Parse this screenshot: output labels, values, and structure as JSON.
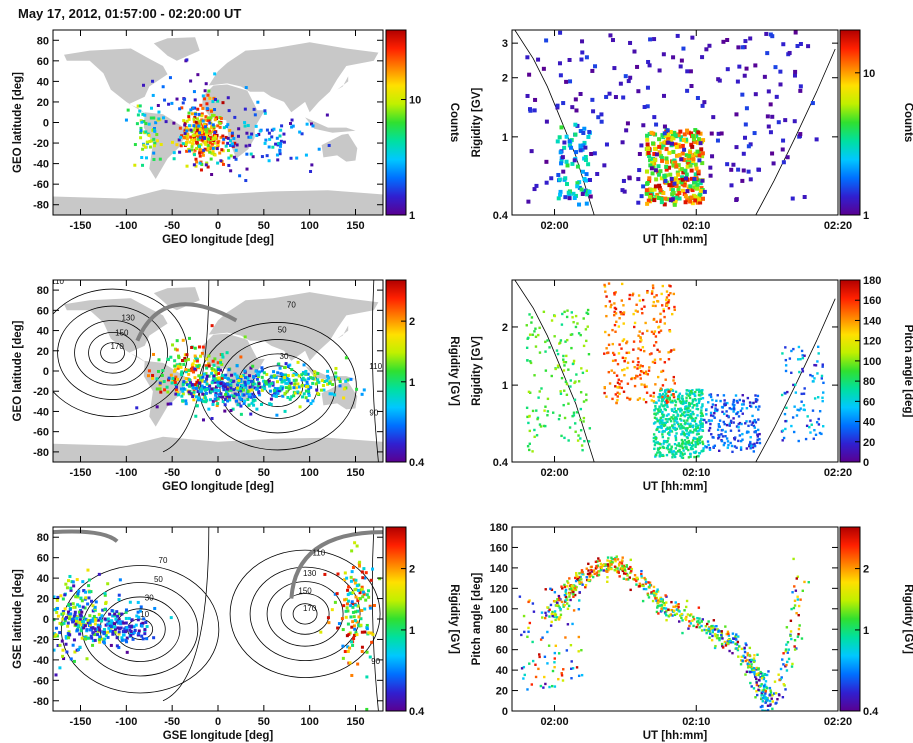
{
  "figure_title": "May 17, 2012, 01:57:00 - 02:20:00 UT",
  "colors": {
    "land": "#c8c8c8",
    "frame": "#000000",
    "orbit_track": "#808080",
    "colormap": [
      "#5a0090",
      "#3020d0",
      "#0070ff",
      "#00c8ff",
      "#00e0a0",
      "#30e030",
      "#c0f000",
      "#ffe000",
      "#ff8000",
      "#ff2000",
      "#b00000"
    ]
  },
  "chart_data": [
    {
      "id": "geo-counts",
      "type": "heatmap",
      "xlabel": "GEO longitude [deg]",
      "ylabel": "GEO latitude [deg]",
      "xlim": [
        -180,
        180
      ],
      "ylim": [
        -90,
        90
      ],
      "xticks": [
        "-150",
        "-100",
        "-50",
        "0",
        "50",
        "100",
        "150"
      ],
      "xtick_values": [
        -150,
        -100,
        -50,
        0,
        50,
        100,
        150
      ],
      "yticks": [
        "80",
        "60",
        "40",
        "20",
        "0",
        "-20",
        "-40",
        "-60",
        "-80"
      ],
      "ytick_values": [
        80,
        60,
        40,
        20,
        0,
        -20,
        -40,
        -60,
        -80
      ],
      "colorbar": {
        "label": "Counts",
        "scale": "log",
        "ticks": [
          "10",
          "1"
        ],
        "tick_values": [
          10,
          1
        ],
        "range": [
          1,
          40
        ]
      },
      "clusters": [
        {
          "lon": -15,
          "lat": -10,
          "spread": [
            12,
            14
          ],
          "n": 260,
          "cmin": 0.5,
          "cmax": 1.0
        },
        {
          "lon": -75,
          "lat": -10,
          "spread": [
            8,
            15
          ],
          "n": 60,
          "cmin": 0.2,
          "cmax": 0.7
        },
        {
          "lon": 30,
          "lat": -18,
          "spread": [
            45,
            14
          ],
          "n": 130,
          "cmin": 0.0,
          "cmax": 0.4
        },
        {
          "lon": -40,
          "lat": 20,
          "spread": [
            25,
            20
          ],
          "n": 40,
          "cmin": 0.0,
          "cmax": 0.3
        }
      ]
    },
    {
      "id": "rigidity-counts",
      "type": "heatmap",
      "xlabel": "UT [hh:mm]",
      "ylabel": "Rigidity [GV]",
      "xlim_minutes": [
        117,
        140
      ],
      "ylim": [
        0.4,
        3.5
      ],
      "yscale": "log",
      "xticks": [
        "02:00",
        "02:10",
        "02:20"
      ],
      "xtick_values": [
        120,
        130,
        140
      ],
      "yticks": [
        "3",
        "2",
        "1",
        "0.4"
      ],
      "ytick_values": [
        3,
        2,
        1,
        0.4
      ],
      "colorbar": {
        "label": "Counts",
        "scale": "log",
        "ticks": [
          "10",
          "1"
        ],
        "tick_values": [
          10,
          1
        ],
        "range": [
          1,
          20
        ]
      },
      "cutoff_curves": [
        {
          "t": [
            117.2,
            118.5,
            119.5,
            120.5,
            121.5,
            122.2,
            122.8
          ],
          "r": [
            3.5,
            2.5,
            1.8,
            1.2,
            0.8,
            0.55,
            0.4
          ]
        },
        {
          "t": [
            134.2,
            135.5,
            137,
            138.5,
            139.8
          ],
          "r": [
            0.4,
            0.6,
            1.0,
            1.7,
            2.8
          ]
        }
      ],
      "clusters": [
        {
          "t0": 126.5,
          "t1": 130.5,
          "r0": 0.45,
          "r1": 1.1,
          "n": 300,
          "cmin": 0.4,
          "cmax": 1.0
        },
        {
          "t0": 120.2,
          "t1": 122.5,
          "r0": 0.45,
          "r1": 1.2,
          "n": 70,
          "cmin": 0.1,
          "cmax": 0.5
        },
        {
          "t0": 118,
          "t1": 138.5,
          "r0": 0.45,
          "r1": 3.4,
          "n": 230,
          "cmin": 0.0,
          "cmax": 0.15
        }
      ]
    },
    {
      "id": "geo-rigidity",
      "type": "scatter",
      "xlabel": "GEO longitude [deg]",
      "ylabel": "GEO latitude [deg]",
      "xlim": [
        -180,
        180
      ],
      "ylim": [
        -90,
        90
      ],
      "xticks": [
        "-150",
        "-100",
        "-50",
        "0",
        "50",
        "100",
        "150"
      ],
      "xtick_values": [
        -150,
        -100,
        -50,
        0,
        50,
        100,
        150
      ],
      "yticks": [
        "80",
        "60",
        "40",
        "20",
        "0",
        "-20",
        "-40",
        "-60",
        "-80"
      ],
      "ytick_values": [
        80,
        60,
        40,
        20,
        0,
        -20,
        -40,
        -60,
        -80
      ],
      "colorbar": {
        "label": "Rigidity [GV]",
        "scale": "log",
        "ticks": [
          "2",
          "1",
          "0.4"
        ],
        "tick_values": [
          2,
          1,
          0.4
        ],
        "range": [
          0.4,
          3.2
        ]
      },
      "contour_labels": [
        {
          "text": "110",
          "lon": -175,
          "lat": 86
        },
        {
          "text": "130",
          "lon": -98,
          "lat": 50
        },
        {
          "text": "150",
          "lon": -105,
          "lat": 35
        },
        {
          "text": "170",
          "lon": -110,
          "lat": 22
        },
        {
          "text": "70",
          "lon": 80,
          "lat": 63
        },
        {
          "text": "50",
          "lon": 70,
          "lat": 38
        },
        {
          "text": "30",
          "lon": 72,
          "lat": 12
        },
        {
          "text": "10",
          "lon": 72,
          "lat": -10
        },
        {
          "text": "110",
          "lon": 172,
          "lat": 2
        },
        {
          "text": "90",
          "lon": 170,
          "lat": -44
        }
      ],
      "south_center": {
        "lon": 65,
        "lat": -15
      },
      "north_center": {
        "lon": -115,
        "lat": 18
      },
      "clusters": [
        {
          "lon": -25,
          "lat": 0,
          "spread": [
            22,
            14
          ],
          "n": 180,
          "cmin": 0.35,
          "cmax": 1.0
        },
        {
          "lon": 15,
          "lat": -18,
          "spread": [
            35,
            10
          ],
          "n": 320,
          "cmin": 0.0,
          "cmax": 0.45
        },
        {
          "lon": 85,
          "lat": -12,
          "spread": [
            30,
            10
          ],
          "n": 160,
          "cmin": 0.2,
          "cmax": 0.7
        }
      ]
    },
    {
      "id": "rigidity-pitch",
      "type": "scatter",
      "xlabel": "UT [hh:mm]",
      "ylabel": "Rigidity [GV]",
      "xlim_minutes": [
        117,
        140
      ],
      "ylim": [
        0.4,
        3.5
      ],
      "yscale": "log",
      "xticks": [
        "02:00",
        "02:10",
        "02:20"
      ],
      "xtick_values": [
        120,
        130,
        140
      ],
      "yticks": [
        "2",
        "1",
        "0.4"
      ],
      "ytick_values": [
        2,
        1,
        0.4
      ],
      "colorbar": {
        "label": "Pitch angle [deg]",
        "scale": "linear",
        "ticks": [
          "180",
          "160",
          "140",
          "120",
          "100",
          "80",
          "60",
          "40",
          "20",
          "0"
        ],
        "tick_values": [
          180,
          160,
          140,
          120,
          100,
          80,
          60,
          40,
          20,
          0
        ],
        "range": [
          0,
          180
        ]
      },
      "cutoff_curves": [
        {
          "t": [
            117.2,
            118.5,
            119.5,
            120.5,
            121.5,
            122.2,
            122.8
          ],
          "r": [
            3.5,
            2.5,
            1.8,
            1.2,
            0.8,
            0.55,
            0.4
          ]
        },
        {
          "t": [
            134.2,
            135.5,
            137,
            138.5,
            139.8
          ],
          "r": [
            0.4,
            0.6,
            1.0,
            1.7,
            2.8
          ]
        }
      ],
      "clusters": [
        {
          "t0": 127,
          "t1": 130.5,
          "r0": 0.42,
          "r1": 0.95,
          "n": 520,
          "cmin": 0.3,
          "cmax": 0.5
        },
        {
          "t0": 123.5,
          "t1": 128.5,
          "r0": 0.8,
          "r1": 3.4,
          "n": 260,
          "cmin": 0.7,
          "cmax": 0.95
        },
        {
          "t0": 130.5,
          "t1": 134.5,
          "r0": 0.45,
          "r1": 0.9,
          "n": 200,
          "cmin": 0.05,
          "cmax": 0.3
        },
        {
          "t0": 118,
          "t1": 122.5,
          "r0": 0.45,
          "r1": 2.5,
          "n": 160,
          "cmin": 0.4,
          "cmax": 0.6
        },
        {
          "t0": 136,
          "t1": 139,
          "r0": 0.5,
          "r1": 1.6,
          "n": 90,
          "cmin": 0.05,
          "cmax": 0.4
        }
      ]
    },
    {
      "id": "gse-rigidity",
      "type": "scatter",
      "xlabel": "GSE longitude [deg]",
      "ylabel": "GSE latitude [deg]",
      "xlim": [
        -180,
        180
      ],
      "ylim": [
        -90,
        90
      ],
      "xticks": [
        "-150",
        "-100",
        "-50",
        "0",
        "50",
        "100",
        "150"
      ],
      "xtick_values": [
        -150,
        -100,
        -50,
        0,
        50,
        100,
        150
      ],
      "yticks": [
        "80",
        "60",
        "40",
        "20",
        "0",
        "-20",
        "-40",
        "-60",
        "-80"
      ],
      "ytick_values": [
        80,
        60,
        40,
        20,
        0,
        -20,
        -40,
        -60,
        -80
      ],
      "colorbar": {
        "label": "Rigidity [GV]",
        "scale": "log",
        "ticks": [
          "2",
          "1",
          "0.4"
        ],
        "tick_values": [
          2,
          1,
          0.4
        ],
        "range": [
          0.4,
          3.2
        ]
      },
      "contour_labels": [
        {
          "text": "70",
          "lon": -60,
          "lat": 55
        },
        {
          "text": "50",
          "lon": -65,
          "lat": 36
        },
        {
          "text": "30",
          "lon": -75,
          "lat": 18
        },
        {
          "text": "10",
          "lon": -80,
          "lat": 2
        },
        {
          "text": "110",
          "lon": 110,
          "lat": 62
        },
        {
          "text": "130",
          "lon": 100,
          "lat": 42
        },
        {
          "text": "150",
          "lon": 95,
          "lat": 25
        },
        {
          "text": "170",
          "lon": 100,
          "lat": 8
        },
        {
          "text": "90",
          "lon": 172,
          "lat": -44
        }
      ],
      "south_center": {
        "lon": -85,
        "lat": -10
      },
      "north_center": {
        "lon": 95,
        "lat": 5
      },
      "clusters": [
        {
          "lon": -150,
          "lat": 0,
          "spread": [
            22,
            18
          ],
          "n": 280,
          "cmin": 0.0,
          "cmax": 0.7
        },
        {
          "lon": -105,
          "lat": -8,
          "spread": [
            18,
            8
          ],
          "n": 120,
          "cmin": 0.0,
          "cmax": 0.35
        },
        {
          "lon": 150,
          "lat": 10,
          "spread": [
            12,
            28
          ],
          "n": 140,
          "cmin": 0.2,
          "cmax": 1.0
        }
      ]
    },
    {
      "id": "pitch-time",
      "type": "scatter",
      "xlabel": "UT [hh:mm]",
      "ylabel": "Pitch angle [deg]",
      "xlim_minutes": [
        117,
        140
      ],
      "ylim": [
        0,
        180
      ],
      "xticks": [
        "02:00",
        "02:10",
        "02:20"
      ],
      "xtick_values": [
        120,
        130,
        140
      ],
      "yticks": [
        "180",
        "160",
        "140",
        "120",
        "100",
        "80",
        "60",
        "40",
        "20",
        "0"
      ],
      "ytick_values": [
        180,
        160,
        140,
        120,
        100,
        80,
        60,
        40,
        20,
        0
      ],
      "colorbar": {
        "label": "Rigidity [GV]",
        "scale": "log",
        "ticks": [
          "2",
          "1",
          "0.4"
        ],
        "tick_values": [
          2,
          1,
          0.4
        ],
        "range": [
          0.4,
          3.2
        ]
      },
      "arcs": [
        {
          "t": [
            119.8,
            121,
            122.5,
            123.8,
            124.8,
            126.5,
            128,
            130,
            132,
            133.5,
            134.5,
            135
          ],
          "p": [
            90,
            118,
            135,
            143,
            142,
            120,
            100,
            88,
            72,
            55,
            30,
            5
          ],
          "n": 650
        },
        {
          "t": [
            135,
            136,
            137,
            137.5
          ],
          "p": [
            5,
            30,
            80,
            150
          ],
          "n": 80
        }
      ],
      "scatter_bg": {
        "t0": 117.5,
        "t1": 122,
        "p0": 20,
        "p1": 120,
        "n": 90
      }
    }
  ]
}
